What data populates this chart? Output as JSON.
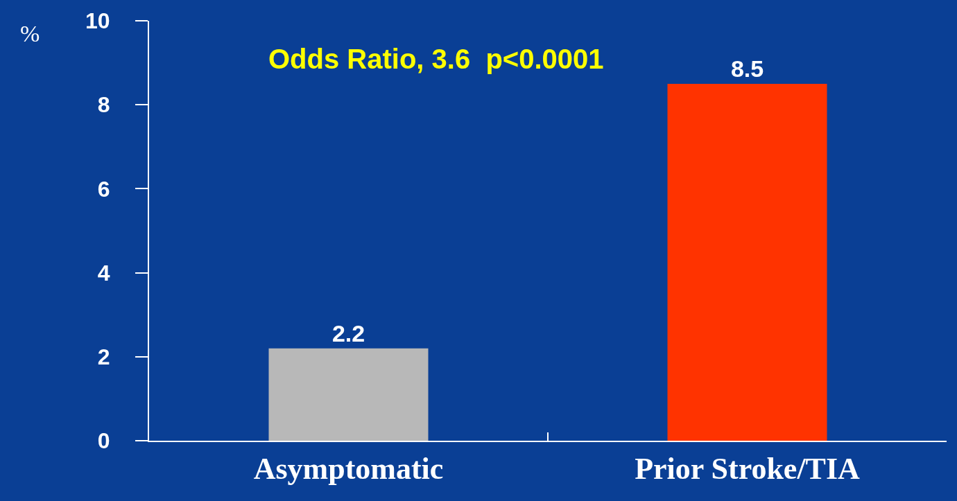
{
  "chart_data": {
    "type": "bar",
    "categories": [
      "Asymptomatic",
      "Prior Stroke/TIA"
    ],
    "values": [
      2.2,
      8.5
    ],
    "colors": [
      "#b8b8b8",
      "#ff3300"
    ],
    "ylim": [
      0,
      10
    ],
    "yticks": [
      0,
      2,
      4,
      6,
      8,
      10
    ],
    "ylabel": "%",
    "annotations": [
      "Odds Ratio, 3.6  p<0.0001"
    ],
    "data_labels": true,
    "grid": false,
    "legend": false
  }
}
